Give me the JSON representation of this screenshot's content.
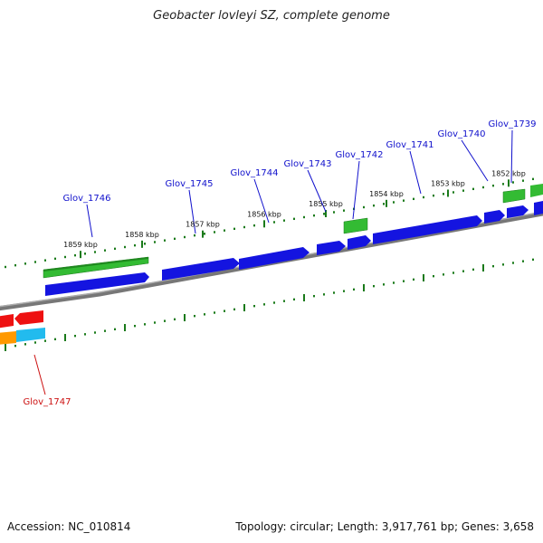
{
  "header": {
    "title": "Geobacter lovleyi SZ, complete genome"
  },
  "footer": {
    "accession": "Accession: NC_010814",
    "stats": "Topology: circular; Length: 3,917,761 bp; Genes: 3,658"
  },
  "scale_ticks": [
    {
      "label": "1859 kbp",
      "kbp": 1859
    },
    {
      "label": "1858 kbp",
      "kbp": 1858
    },
    {
      "label": "1857 kbp",
      "kbp": 1857
    },
    {
      "label": "1856 kbp",
      "kbp": 1856
    },
    {
      "label": "1855 kbp",
      "kbp": 1855
    },
    {
      "label": "1854 kbp",
      "kbp": 1854
    },
    {
      "label": "1853 kbp",
      "kbp": 1853
    },
    {
      "label": "1852 kbp",
      "kbp": 1852
    }
  ],
  "gene_labels": [
    {
      "name": "Glov_1746",
      "color": "#1010cc"
    },
    {
      "name": "Glov_1745",
      "color": "#1010cc"
    },
    {
      "name": "Glov_1744",
      "color": "#1010cc"
    },
    {
      "name": "Glov_1743",
      "color": "#1010cc"
    },
    {
      "name": "Glov_1742",
      "color": "#1010cc"
    },
    {
      "name": "Glov_1741",
      "color": "#1010cc"
    },
    {
      "name": "Glov_1740",
      "color": "#1010cc"
    },
    {
      "name": "Glov_1739",
      "color": "#1010cc"
    },
    {
      "name": "Glov_1747",
      "color": "#cc1010"
    }
  ],
  "colors": {
    "blue_gene": "#1414e0",
    "green_gene": "#33bb33",
    "red_gene": "#ee1111",
    "orange_gene": "#ff9900",
    "cyan_gene": "#22bbee",
    "backbone": "#888888",
    "tick": "#1a7a1a"
  }
}
